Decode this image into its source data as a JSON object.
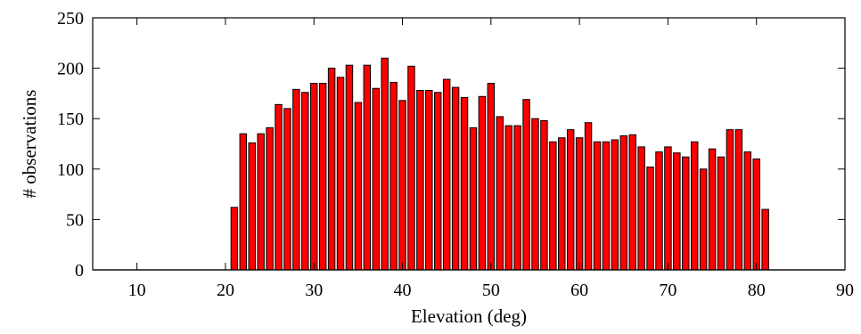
{
  "chart_data": {
    "type": "bar",
    "xlabel": "Elevation (deg)",
    "ylabel": "# observations",
    "xlim": [
      5,
      90
    ],
    "ylim": [
      0,
      250
    ],
    "xticks": [
      10,
      20,
      30,
      40,
      50,
      60,
      70,
      80,
      90
    ],
    "yticks": [
      0,
      50,
      100,
      150,
      200,
      250
    ],
    "grid": false,
    "bar_color": "#ff0000",
    "bar_edge_color": "#000000",
    "bar_width": 0.75,
    "x": [
      21,
      22,
      23,
      24,
      25,
      26,
      27,
      28,
      29,
      30,
      31,
      32,
      33,
      34,
      35,
      36,
      37,
      38,
      39,
      40,
      41,
      42,
      43,
      44,
      45,
      46,
      47,
      48,
      49,
      50,
      51,
      52,
      53,
      54,
      55,
      56,
      57,
      58,
      59,
      60,
      61,
      62,
      63,
      64,
      65,
      66,
      67,
      68,
      69,
      70,
      71,
      72,
      73,
      74,
      75,
      76,
      77,
      78,
      79,
      80,
      81
    ],
    "values": [
      62,
      135,
      126,
      135,
      141,
      164,
      160,
      179,
      176,
      185,
      185,
      200,
      191,
      203,
      166,
      203,
      180,
      210,
      186,
      168,
      202,
      178,
      178,
      176,
      189,
      181,
      171,
      141,
      172,
      185,
      152,
      143,
      143,
      169,
      150,
      148,
      127,
      131,
      139,
      131,
      146,
      127,
      127,
      129,
      133,
      134,
      122,
      102,
      117,
      122,
      116,
      112,
      127,
      100,
      120,
      112,
      139,
      139,
      117,
      110,
      60
    ]
  }
}
